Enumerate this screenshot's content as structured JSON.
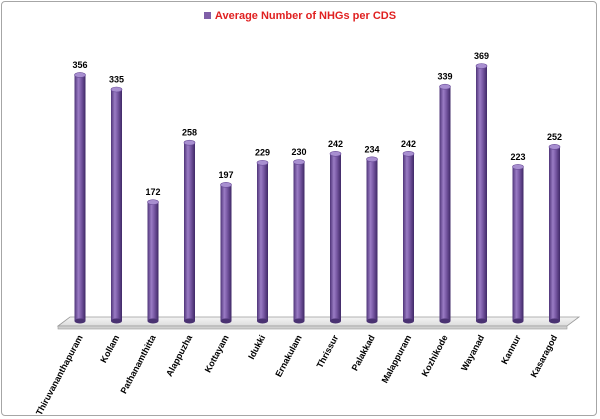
{
  "chart_data": {
    "type": "bar",
    "categories": [
      "Thiruvananthapuram",
      "Kollam",
      "Pathanamthitta",
      "Alappuzha",
      "Kottayam",
      "Idukki",
      "Ernakulam",
      "Thrissur",
      "Palakkad",
      "Malappuram",
      "Kozhikode",
      "Wayanad",
      "Kannur",
      "Kasaragod"
    ],
    "series": [
      {
        "name": "Average Number of NHGs per CDS",
        "values": [
          356,
          335,
          172,
          258,
          197,
          229,
          230,
          242,
          234,
          242,
          339,
          369,
          223,
          252
        ],
        "color": "#7f5fa8"
      }
    ],
    "title": "",
    "xlabel": "",
    "ylabel": "",
    "ylim": [
      0,
      400
    ],
    "grid": false,
    "legend": "top-center",
    "bar_style": "3d-cylinder"
  }
}
